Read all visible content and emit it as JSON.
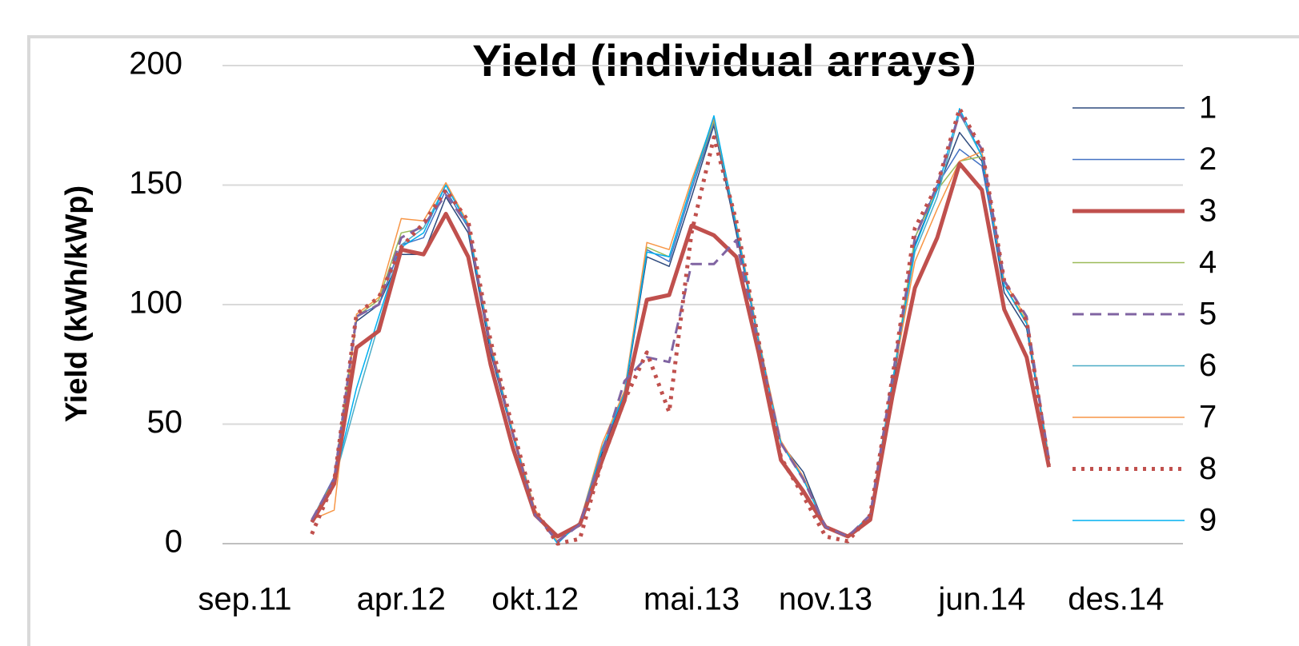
{
  "chart_data": {
    "type": "line",
    "title": "Yield (individual arrays)",
    "y_label": "Yield  (kWh/kWp)",
    "x": [
      "2011-12",
      "2012-01",
      "2012-02",
      "2012-03",
      "2012-04",
      "2012-05",
      "2012-06",
      "2012-07",
      "2012-08",
      "2012-09",
      "2012-10",
      "2012-11",
      "2012-12",
      "2013-01",
      "2013-02",
      "2013-03",
      "2013-04",
      "2013-05",
      "2013-06",
      "2013-07",
      "2013-08",
      "2013-09",
      "2013-10",
      "2013-11",
      "2013-12",
      "2014-01",
      "2014-02",
      "2014-03",
      "2014-04",
      "2014-05",
      "2014-06",
      "2014-07",
      "2014-08",
      "2014-09"
    ],
    "xlim": [
      "2011-08",
      "2015-03"
    ],
    "xticks": [
      {
        "value": "2011-09",
        "label": "sep.11"
      },
      {
        "value": "2012-04",
        "label": "apr.12"
      },
      {
        "value": "2012-10",
        "label": "okt.12"
      },
      {
        "value": "2013-05",
        "label": "mai.13"
      },
      {
        "value": "2013-11",
        "label": "nov.13"
      },
      {
        "value": "2014-06",
        "label": "jun.14"
      },
      {
        "value": "2014-12",
        "label": "des.14"
      }
    ],
    "ylim": [
      0,
      200
    ],
    "yticks": [
      0,
      50,
      100,
      150,
      200
    ],
    "grid": true,
    "legend": "right",
    "series": [
      {
        "name": "1",
        "color": "#2e4a7d",
        "style": "solid",
        "width": 1.5,
        "values": [
          9,
          27,
          93,
          100,
          121,
          121,
          145,
          130,
          80,
          45,
          12,
          1,
          8,
          38,
          62,
          120,
          116,
          145,
          175,
          130,
          85,
          42,
          30,
          7,
          3,
          12,
          65,
          125,
          148,
          172,
          160,
          105,
          90,
          35
        ]
      },
      {
        "name": "2",
        "color": "#4472c4",
        "style": "solid",
        "width": 1.5,
        "values": [
          10,
          28,
          95,
          100,
          125,
          128,
          148,
          132,
          82,
          45,
          12,
          1,
          8,
          40,
          63,
          123,
          118,
          148,
          176,
          132,
          85,
          42,
          28,
          7,
          3,
          12,
          67,
          128,
          150,
          165,
          158,
          108,
          92,
          35
        ]
      },
      {
        "name": "3",
        "color": "#c0504d",
        "style": "solid",
        "width": 5,
        "values": [
          9,
          25,
          82,
          89,
          123,
          121,
          138,
          120,
          75,
          40,
          12,
          3,
          8,
          35,
          60,
          102,
          104,
          133,
          129,
          120,
          80,
          35,
          22,
          7,
          3,
          10,
          62,
          107,
          128,
          159,
          148,
          98,
          78,
          32
        ]
      },
      {
        "name": "4",
        "color": "#9bbb59",
        "style": "solid",
        "width": 1.5,
        "values": [
          10,
          27,
          95,
          102,
          130,
          132,
          150,
          133,
          83,
          46,
          13,
          1,
          9,
          40,
          63,
          124,
          120,
          150,
          177,
          133,
          85,
          42,
          27,
          7,
          3,
          12,
          68,
          128,
          148,
          160,
          162,
          108,
          93,
          36
        ]
      },
      {
        "name": "5",
        "color": "#8064a2",
        "style": "dashed",
        "width": 3,
        "values": [
          10,
          27,
          95,
          100,
          128,
          133,
          146,
          133,
          82,
          46,
          12,
          1,
          8,
          38,
          68,
          78,
          76,
          117,
          117,
          127,
          83,
          42,
          27,
          7,
          3,
          12,
          70,
          128,
          150,
          180,
          165,
          110,
          95,
          35
        ]
      },
      {
        "name": "6",
        "color": "#4bacc6",
        "style": "solid",
        "width": 1.5,
        "values": [
          9,
          26,
          60,
          92,
          125,
          132,
          150,
          133,
          83,
          46,
          13,
          1,
          9,
          40,
          63,
          122,
          120,
          150,
          178,
          133,
          85,
          42,
          27,
          7,
          3,
          12,
          68,
          122,
          145,
          180,
          162,
          108,
          92,
          36
        ]
      },
      {
        "name": "7",
        "color": "#f79646",
        "style": "solid",
        "width": 1.5,
        "values": [
          10,
          14,
          96,
          103,
          136,
          135,
          151,
          134,
          84,
          47,
          14,
          1,
          9,
          42,
          64,
          126,
          123,
          152,
          178,
          134,
          86,
          43,
          28,
          7,
          3,
          12,
          68,
          118,
          140,
          160,
          164,
          110,
          94,
          36
        ]
      },
      {
        "name": "8",
        "color": "#c0504d",
        "style": "dotted",
        "width": 5,
        "values": [
          4,
          26,
          96,
          103,
          124,
          134,
          148,
          135,
          85,
          48,
          14,
          0,
          2,
          35,
          60,
          80,
          55,
          130,
          170,
          135,
          85,
          36,
          20,
          3,
          1,
          12,
          70,
          132,
          150,
          182,
          165,
          110,
          93,
          33
        ]
      },
      {
        "name": "9",
        "color": "#00b0f0",
        "style": "solid",
        "width": 1.5,
        "values": [
          9,
          26,
          65,
          95,
          124,
          130,
          150,
          133,
          83,
          46,
          13,
          0,
          9,
          40,
          63,
          122,
          120,
          150,
          179,
          133,
          85,
          42,
          27,
          7,
          3,
          12,
          68,
          124,
          148,
          182,
          162,
          108,
          92,
          35
        ]
      }
    ]
  }
}
